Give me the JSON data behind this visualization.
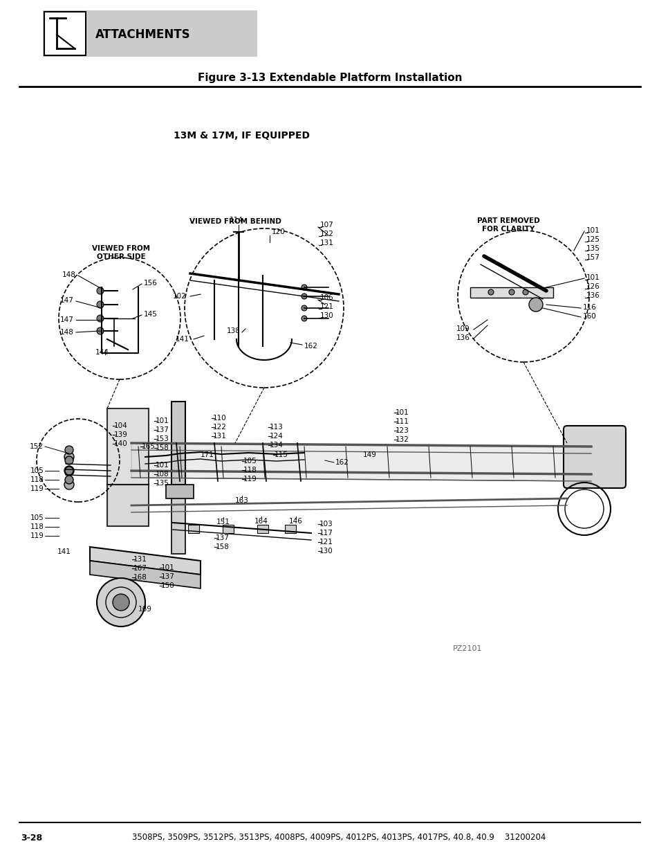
{
  "title": "Figure 3-13 Extendable Platform Installation",
  "subtitle": "13M & 17M, IF EQUIPPED",
  "header_text": "ATTACHMENTS",
  "footer_left": "3-28",
  "footer_right": "3508PS, 3509PS, 3512PS, 3513PS, 4008PS, 4009PS, 4012PS, 4013PS, 4017PS, 40.8, 40.9    31200204",
  "part_number": "PZ2101",
  "viewed_from_behind": "VIEWED FROM BEHIND",
  "viewed_from_other": "VIEWED FROM\nOTHER SIDE",
  "part_removed": "PART REMOVED\nFOR CLARITY",
  "bg_color": "#ffffff",
  "header_bg": "#cccccc",
  "line_color": "#000000"
}
